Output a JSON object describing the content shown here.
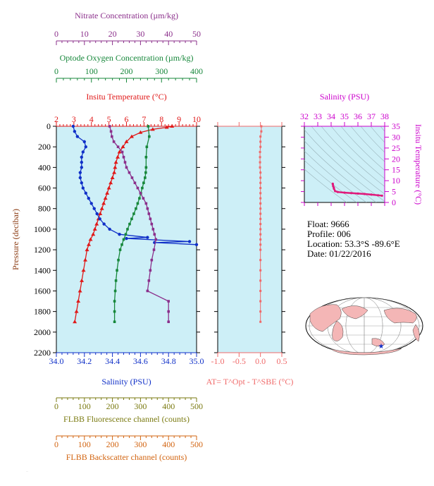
{
  "colors": {
    "nitrate": "#8b2f8b",
    "oxygen": "#16873a",
    "temperature": "#e01818",
    "salinity": "#1030c8",
    "delta_t": "#f06a6a",
    "ts_axis": "#cc00cc",
    "fluorescence": "#7a7a10",
    "backscatter": "#d26410",
    "panel_bg": "#cdeff7",
    "axis": "#000000"
  },
  "float_info": {
    "float": "Float:  9666",
    "profile": "Profile:  006",
    "location": "Location:  53.3°S  -89.6°E",
    "date": "Date:  01/22/2016"
  },
  "footer_text": "…",
  "chart_data": [
    {
      "type": "line",
      "panel": "main-profile",
      "y_label": "Pressure (decibar)",
      "y_range": [
        2200,
        0
      ],
      "y_ticks": [
        "0",
        "200",
        "400",
        "600",
        "800",
        "1000",
        "1200",
        "1400",
        "1600",
        "1800",
        "2000",
        "2200"
      ],
      "axes": {
        "nitrate": {
          "label": "Nitrate Concentration (µm/kg)",
          "range": [
            0,
            50
          ],
          "ticks": [
            "0",
            "10",
            "20",
            "30",
            "40",
            "50"
          ]
        },
        "oxygen": {
          "label": "Optode Oxygen Concentration (µm/kg)",
          "range": [
            0,
            400
          ],
          "ticks": [
            "0",
            "100",
            "200",
            "300",
            "400"
          ]
        },
        "temperature": {
          "label": "Insitu Temperature (°C)",
          "range": [
            2,
            10
          ],
          "ticks": [
            "2",
            "3",
            "4",
            "5",
            "6",
            "7",
            "8",
            "9",
            "10"
          ]
        },
        "salinity": {
          "label": "Salinity (PSU)",
          "range": [
            34.0,
            35.0
          ],
          "ticks": [
            "34.0",
            "34.2",
            "34.4",
            "34.6",
            "34.8",
            "35.0"
          ]
        },
        "fluorescence": {
          "label": "FLBB Fluorescence channel (counts)",
          "range": [
            0,
            500
          ],
          "ticks": [
            "0",
            "100",
            "200",
            "300",
            "400",
            "500"
          ]
        },
        "backscatter": {
          "label": "FLBB Backscatter channel (counts)",
          "range": [
            0,
            500
          ],
          "ticks": [
            "0",
            "100",
            "200",
            "300",
            "400",
            "500"
          ]
        }
      },
      "series": [
        {
          "name": "temperature",
          "points": [
            [
              8.6,
              0
            ],
            [
              8.3,
              10
            ],
            [
              7.5,
              30
            ],
            [
              6.8,
              60
            ],
            [
              6.3,
              100
            ],
            [
              6.0,
              150
            ],
            [
              5.8,
              200
            ],
            [
              5.6,
              250
            ],
            [
              5.5,
              300
            ],
            [
              5.4,
              350
            ],
            [
              5.35,
              400
            ],
            [
              5.3,
              450
            ],
            [
              5.2,
              500
            ],
            [
              5.1,
              550
            ],
            [
              5.0,
              600
            ],
            [
              4.9,
              650
            ],
            [
              4.8,
              700
            ],
            [
              4.7,
              750
            ],
            [
              4.6,
              800
            ],
            [
              4.5,
              850
            ],
            [
              4.4,
              900
            ],
            [
              4.3,
              950
            ],
            [
              4.2,
              1000
            ],
            [
              4.1,
              1050
            ],
            [
              3.95,
              1100
            ],
            [
              3.85,
              1150
            ],
            [
              3.75,
              1200
            ],
            [
              3.65,
              1300
            ],
            [
              3.55,
              1400
            ],
            [
              3.45,
              1500
            ],
            [
              3.35,
              1600
            ],
            [
              3.25,
              1700
            ],
            [
              3.15,
              1800
            ],
            [
              3.05,
              1900
            ]
          ]
        },
        {
          "name": "salinity",
          "points": [
            [
              34.12,
              0
            ],
            [
              34.13,
              50
            ],
            [
              34.15,
              100
            ],
            [
              34.2,
              150
            ],
            [
              34.21,
              200
            ],
            [
              34.19,
              250
            ],
            [
              34.18,
              300
            ],
            [
              34.18,
              350
            ],
            [
              34.18,
              400
            ],
            [
              34.17,
              450
            ],
            [
              34.17,
              500
            ],
            [
              34.18,
              550
            ],
            [
              34.19,
              600
            ],
            [
              34.21,
              650
            ],
            [
              34.23,
              700
            ],
            [
              34.25,
              750
            ],
            [
              34.27,
              800
            ],
            [
              34.29,
              850
            ],
            [
              34.31,
              900
            ],
            [
              34.34,
              950
            ],
            [
              34.38,
              1000
            ],
            [
              34.45,
              1050
            ],
            [
              34.65,
              1080
            ],
            [
              34.5,
              1090
            ],
            [
              34.95,
              1120
            ],
            [
              34.7,
              1130
            ],
            [
              35.0,
              1150
            ]
          ]
        },
        {
          "name": "oxygen",
          "points": [
            [
              262,
              0
            ],
            [
              265,
              100
            ],
            [
              258,
              200
            ],
            [
              256,
              300
            ],
            [
              256,
              400
            ],
            [
              255,
              450
            ],
            [
              253,
              500
            ],
            [
              249,
              550
            ],
            [
              245,
              600
            ],
            [
              241,
              650
            ],
            [
              237,
              700
            ],
            [
              232,
              750
            ],
            [
              227,
              800
            ],
            [
              221,
              850
            ],
            [
              215,
              900
            ],
            [
              209,
              950
            ],
            [
              203,
              1000
            ],
            [
              198,
              1050
            ],
            [
              192,
              1100
            ],
            [
              187,
              1150
            ],
            [
              182,
              1200
            ],
            [
              177,
              1300
            ],
            [
              173,
              1400
            ],
            [
              170,
              1500
            ],
            [
              168,
              1600
            ],
            [
              166,
              1700
            ],
            [
              166,
              1800
            ],
            [
              166,
              1900
            ]
          ]
        },
        {
          "name": "nitrate",
          "points": [
            [
              19.0,
              0
            ],
            [
              19.5,
              50
            ],
            [
              19.8,
              100
            ],
            [
              20.5,
              150
            ],
            [
              22.0,
              200
            ],
            [
              23.5,
              250
            ],
            [
              24.0,
              300
            ],
            [
              24.5,
              350
            ],
            [
              25.0,
              400
            ],
            [
              26.0,
              450
            ],
            [
              27.0,
              500
            ],
            [
              28.0,
              550
            ],
            [
              29.0,
              600
            ],
            [
              30.0,
              650
            ],
            [
              31.0,
              700
            ],
            [
              32.0,
              750
            ],
            [
              32.5,
              800
            ],
            [
              33.0,
              850
            ],
            [
              33.5,
              900
            ],
            [
              34.0,
              950
            ],
            [
              34.5,
              1000
            ],
            [
              35.0,
              1050
            ],
            [
              35.5,
              1100
            ],
            [
              34.8,
              1200
            ],
            [
              34.0,
              1300
            ],
            [
              33.5,
              1400
            ],
            [
              33.0,
              1500
            ],
            [
              32.5,
              1600
            ],
            [
              40.0,
              1700
            ],
            [
              40.0,
              1800
            ],
            [
              40.0,
              1900
            ]
          ]
        }
      ]
    },
    {
      "type": "line",
      "panel": "delta-t",
      "x_label": "AT= T^Opt - T^SBE (°C)",
      "x_range": [
        -1.0,
        0.5
      ],
      "x_ticks": [
        "-1.0",
        "-0.5",
        "0.0",
        "0.5"
      ],
      "y_range": [
        2200,
        0
      ],
      "series": [
        {
          "name": "delta_t",
          "points": [
            [
              0.02,
              0
            ],
            [
              0.02,
              50
            ],
            [
              0.0,
              100
            ],
            [
              0.0,
              150
            ],
            [
              0.0,
              200
            ],
            [
              -0.01,
              250
            ],
            [
              -0.01,
              300
            ],
            [
              -0.01,
              350
            ],
            [
              -0.01,
              400
            ],
            [
              0.0,
              450
            ],
            [
              0.0,
              500
            ],
            [
              0.0,
              550
            ],
            [
              0.0,
              600
            ],
            [
              0.0,
              650
            ],
            [
              0.0,
              700
            ],
            [
              0.0,
              750
            ],
            [
              0.0,
              800
            ],
            [
              0.0,
              850
            ],
            [
              0.0,
              900
            ],
            [
              0.0,
              950
            ],
            [
              0.0,
              1000
            ],
            [
              0.0,
              1050
            ],
            [
              0.0,
              1100
            ],
            [
              0.0,
              1150
            ],
            [
              0.0,
              1200
            ],
            [
              0.0,
              1300
            ],
            [
              0.0,
              1400
            ],
            [
              0.0,
              1500
            ],
            [
              0.0,
              1600
            ],
            [
              0.0,
              1700
            ],
            [
              0.0,
              1800
            ],
            [
              0.0,
              1900
            ]
          ]
        }
      ]
    },
    {
      "type": "scatter",
      "panel": "ts-diagram",
      "x_label": "Salinity (PSU)",
      "y_label": "Insitu Temperature (°C)",
      "x_range": [
        32,
        38
      ],
      "y_range": [
        0,
        35
      ],
      "x_ticks": [
        "32",
        "33",
        "34",
        "35",
        "36",
        "37",
        "38"
      ],
      "y_ticks": [
        "0",
        "5",
        "10",
        "15",
        "20",
        "25",
        "30",
        "35"
      ],
      "series": [
        {
          "name": "ts",
          "points": [
            [
              34.12,
              8.6
            ],
            [
              34.13,
              8.3
            ],
            [
              34.15,
              7.5
            ],
            [
              34.2,
              6.8
            ],
            [
              34.21,
              6.3
            ],
            [
              34.3,
              5.2
            ],
            [
              34.5,
              4.8
            ],
            [
              35,
              4.5
            ],
            [
              35.5,
              4.3
            ],
            [
              36,
              4.1
            ],
            [
              36.5,
              3.9
            ],
            [
              37,
              3.6
            ],
            [
              37.5,
              3.3
            ],
            [
              37.8,
              3.1
            ]
          ]
        }
      ]
    }
  ]
}
